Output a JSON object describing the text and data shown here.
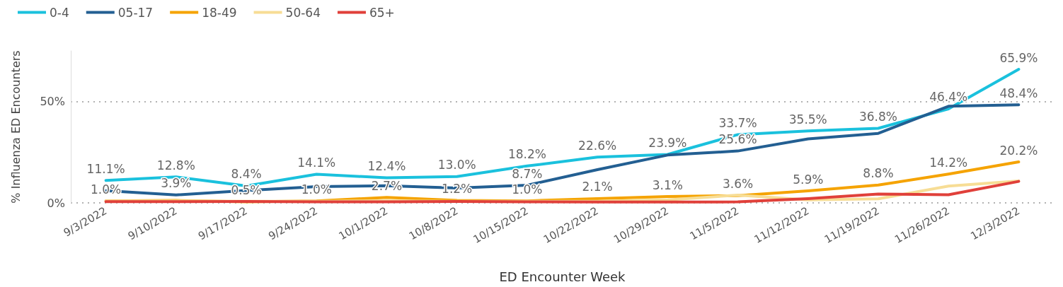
{
  "chart_data": {
    "type": "line",
    "xlabel": "ED Encounter Week",
    "ylabel": "% Influenza ED Encounters",
    "categories": [
      "9/3/2022",
      "9/10/2022",
      "9/17/2022",
      "9/24/2022",
      "10/1/2022",
      "10/8/2022",
      "10/15/2022",
      "10/22/2022",
      "10/29/2022",
      "11/5/2022",
      "11/12/2022",
      "11/19/2022",
      "11/26/2022",
      "12/3/2022"
    ],
    "ylim": [
      0,
      75
    ],
    "yticks": [
      {
        "value": 0,
        "label": "0%"
      },
      {
        "value": 50,
        "label": "50%"
      }
    ],
    "grid": "y",
    "legend": "top left",
    "marker": "none",
    "line_style": "solid",
    "series": [
      {
        "name": "0-4",
        "color": "#1ac1dd",
        "values": [
          11.1,
          12.8,
          8.4,
          14.1,
          12.4,
          13.0,
          18.2,
          22.6,
          23.9,
          33.7,
          35.5,
          36.8,
          46.4,
          65.9
        ],
        "value_labels": [
          "11.1%",
          "12.8%",
          "8.4%",
          "14.1%",
          "12.4%",
          "13.0%",
          "18.2%",
          "22.6%",
          "23.9%",
          "33.7%",
          "35.5%",
          "36.8%",
          "46.4%",
          "65.9%"
        ]
      },
      {
        "name": "05-17",
        "color": "#235f92",
        "values": [
          6.0,
          3.9,
          6.1,
          8.0,
          8.5,
          7.3,
          8.7,
          16.4,
          23.6,
          25.6,
          31.6,
          34.3,
          47.7,
          48.4
        ],
        "value_labels": [
          null,
          "3.9%",
          null,
          null,
          null,
          null,
          "8.7%",
          null,
          null,
          "25.6%",
          null,
          null,
          null,
          "48.4%"
        ]
      },
      {
        "name": "18-49",
        "color": "#f5a300",
        "values": [
          1.0,
          1.2,
          0.5,
          1.0,
          2.7,
          1.2,
          1.0,
          2.1,
          3.1,
          3.6,
          5.9,
          8.8,
          14.2,
          20.2
        ],
        "value_labels": [
          "1.0%",
          null,
          "0.5%",
          "1.0%",
          "2.7%",
          "1.2%",
          "1.0%",
          "2.1%",
          "3.1%",
          "3.6%",
          "5.9%",
          "8.8%",
          "14.2%",
          "20.2%"
        ]
      },
      {
        "name": "50-64",
        "color": "#f7dd95",
        "values": [
          1.0,
          1.0,
          0.8,
          0.8,
          1.0,
          0.8,
          0.8,
          0.8,
          1.5,
          3.8,
          1.5,
          2.0,
          8.3,
          10.8
        ]
      },
      {
        "name": "65+",
        "color": "#e0403a",
        "values": [
          0.6,
          0.6,
          0.7,
          0.5,
          0.5,
          0.7,
          0.5,
          0.4,
          0.4,
          0.5,
          2.1,
          4.4,
          4.0,
          10.6
        ]
      }
    ]
  }
}
